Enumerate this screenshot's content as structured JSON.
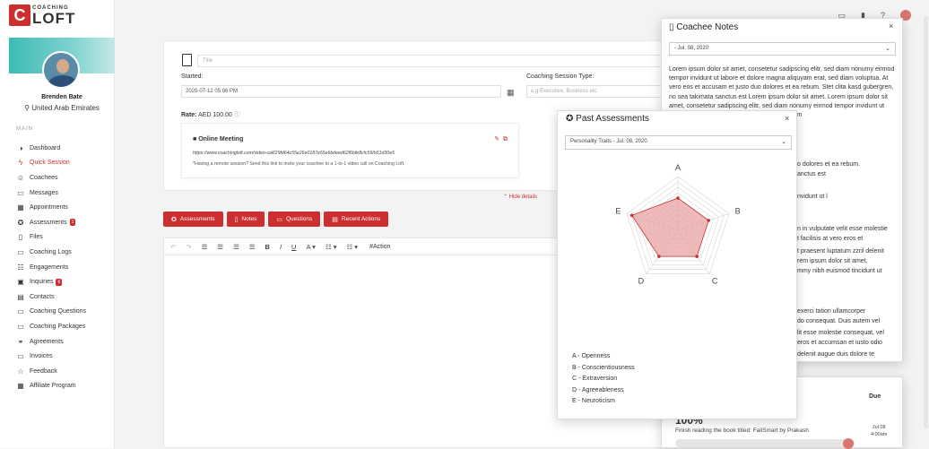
{
  "brand": {
    "logo_letter": "C",
    "small": "COACHING",
    "big": "LOFT"
  },
  "user": {
    "name": "Brenden Bate",
    "location": "United Arab Emirates"
  },
  "menu_heading": "MAIN",
  "menu": [
    {
      "label": "Dashboard",
      "icon": "dashboard-icon",
      "glyph": "◑"
    },
    {
      "label": "Quick Session",
      "icon": "bolt-icon",
      "glyph": "ϟ",
      "active": true
    },
    {
      "label": "Coachees",
      "icon": "users-icon",
      "glyph": "☺"
    },
    {
      "label": "Messages",
      "icon": "message-icon",
      "glyph": "▭"
    },
    {
      "label": "Appointments",
      "icon": "calendar-icon",
      "glyph": "▦"
    },
    {
      "label": "Assessments",
      "icon": "assessment-icon",
      "glyph": "✪",
      "badge": "1"
    },
    {
      "label": "Files",
      "icon": "file-icon",
      "glyph": "▯"
    },
    {
      "label": "Coaching Logs",
      "icon": "log-icon",
      "glyph": "▭"
    },
    {
      "label": "Engagements",
      "icon": "engagement-icon",
      "glyph": "☷"
    },
    {
      "label": "Inquiries",
      "icon": "inbox-icon",
      "glyph": "▣",
      "badge": "6"
    },
    {
      "label": "Contacts",
      "icon": "contacts-icon",
      "glyph": "▤"
    },
    {
      "label": "Coaching Questions",
      "icon": "question-icon",
      "glyph": "▭"
    },
    {
      "label": "Coaching Packages",
      "icon": "package-icon",
      "glyph": "▭"
    },
    {
      "label": "Agreements",
      "icon": "handshake-icon",
      "glyph": "⚭"
    },
    {
      "label": "Invoices",
      "icon": "invoice-icon",
      "glyph": "▭"
    },
    {
      "label": "Feedback",
      "icon": "star-icon",
      "glyph": "☆"
    },
    {
      "label": "Affiliate Program",
      "icon": "affiliate-icon",
      "glyph": "▦"
    }
  ],
  "topbar": {
    "icons": [
      "chat-icon",
      "book-icon",
      "help-icon",
      "user-avatar"
    ]
  },
  "details": {
    "title_placeholder": "Title",
    "started_label": "Started:",
    "started_value": "2020-07-12 05:06 PM",
    "session_type_label": "Coaching Session Type:",
    "session_type_placeholder": "e.g Executive, Business etc.",
    "rate_label": "Rate:",
    "rate_value": "AED 100.00",
    "meeting_title": "Online Meeting",
    "meeting_link": "https://www.coachingloft.com/video-call/29fd64c55e26e0187e55e6bdeed62f6bfe8cfc59/b51d30e5",
    "meeting_desc": "*Having a remote session? Send this link to invite your coachee to a 1-to-1 video call on Coaching Loft.",
    "hide_details": "Hide details"
  },
  "action_buttons": [
    {
      "label": "Assessments",
      "glyph": "✪"
    },
    {
      "label": "Notes",
      "glyph": "▯"
    },
    {
      "label": "Questions",
      "glyph": "▭"
    },
    {
      "label": "Recent Actions",
      "glyph": "▤"
    }
  ],
  "editor": {
    "action_tag": "#Action"
  },
  "coachee_notes": {
    "title": "Coachee Notes",
    "date_select": "- Jul. 08, 2020",
    "paragraph": "Lorem ipsum dolor sit amet, consetetur sadipscing elitr, sed diam nonumy eirmod tempor invidunt ut labore et dolore magna aliquyam erat, sed diam voluptua. At vero eos et accusam et justo duo dolores et ea rebum. Stet clita kasd gubergren, no sea takimata sanctus est Lorem ipsum dolor sit amet. Lorem ipsum dolor sit amet, consetetur sadipscing elitr, sed diam nonumy eirmod tempor invidunt ut labore et dolore magna aliquyam erat, sed diam",
    "fragments": [
      "o dolores et ea rebum.",
      "anctus est",
      "nvidunt ut l",
      "n in vulputate velit esse molestie",
      "t facilisis at vero eros et",
      "t praesent luptatum zzril delenit",
      "rem ipsum dolor sit amet,",
      "mmy nibh euismod tincidunt ut",
      "exerci tation ullamcorper",
      "do consequat. Duis autem vel",
      "lit esse molestie consequat, vel",
      "eros et accumsan et iusto odio",
      "delenit augue duis dolore te"
    ]
  },
  "past_assessments": {
    "title": "Past Assessments",
    "select": "Personality Traits - Jul. 08, 2020",
    "legend": [
      "A - Openness",
      "B - Conscientiousness",
      "C - Extraversion",
      "D - Agreeableness",
      "E - Neuroticism"
    ]
  },
  "chart_data": {
    "type": "radar",
    "categories": [
      "A",
      "B",
      "C",
      "D",
      "E"
    ],
    "values": [
      6,
      6,
      6,
      6,
      9
    ],
    "range": [
      0,
      10
    ],
    "grid_levels": 10,
    "fill_color": "#e8a3a3",
    "line_color": "#cc2f2f"
  },
  "task": {
    "due_label": "Due",
    "percent": "100%",
    "description": "Finish reading the book titled: FailSmart by Prakash",
    "due_date": "Jul 08",
    "due_time": "4:00am",
    "progress": 1.0
  }
}
